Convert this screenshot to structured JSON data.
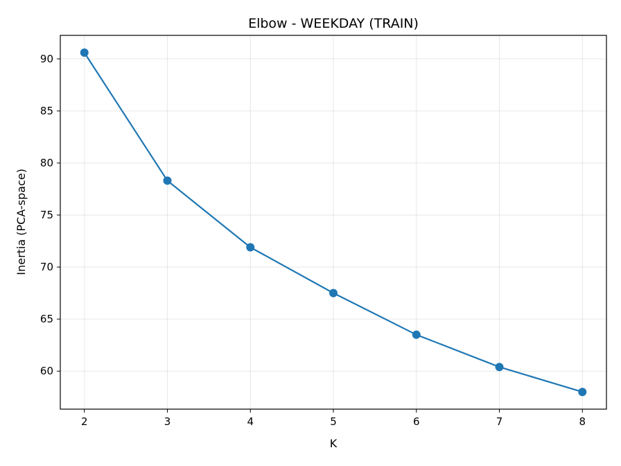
{
  "chart_data": {
    "type": "line",
    "title": "Elbow - WEEKDAY (TRAIN)",
    "xlabel": "K",
    "ylabel": "Inertia (PCA-space)",
    "x": [
      2,
      3,
      4,
      5,
      6,
      7,
      8
    ],
    "series": [
      {
        "values": [
          90.6,
          78.3,
          71.9,
          67.5,
          63.5,
          60.4,
          58.0
        ],
        "color": "#1f77b4",
        "marker": "circle"
      }
    ],
    "xlim": [
      1.71,
      8.29
    ],
    "ylim": [
      56.35,
      92.26
    ],
    "xticks": [
      2,
      3,
      4,
      5,
      6,
      7,
      8
    ],
    "yticks": [
      60,
      65,
      70,
      75,
      80,
      85,
      90
    ],
    "grid": true,
    "legend": "none"
  }
}
